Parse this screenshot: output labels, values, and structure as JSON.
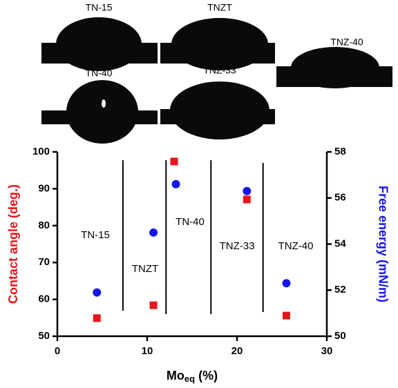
{
  "images": [
    {
      "label": "TN-15"
    },
    {
      "label": "TNZT"
    },
    {
      "label": "TNZ-40"
    },
    {
      "label": "TN-40"
    },
    {
      "label": "TNZ-33"
    }
  ],
  "chart_data": {
    "type": "scatter",
    "x_label": {
      "text": "Mo",
      "subscript": "eq",
      "suffix": "(%)"
    },
    "y_label": "Contact angle (deg.)",
    "y2_label": "Free energy (mN/m)",
    "xlim": [
      0,
      30
    ],
    "xticks": [
      0,
      10,
      20,
      30
    ],
    "ylim": [
      50,
      100
    ],
    "yticks": [
      50,
      60,
      70,
      80,
      90,
      100
    ],
    "y2lim": [
      50,
      58
    ],
    "y2ticks": [
      50,
      52,
      54,
      56,
      58
    ],
    "series": [
      {
        "color": "#e8141b",
        "marker": "square",
        "x": [
          4.4,
          10.7,
          13.0,
          21.1,
          25.5
        ],
        "values": [
          54.9,
          58.4,
          97.4,
          87.1,
          55.6
        ]
      },
      {
        "color": "#1515ee",
        "marker": "circle",
        "axis": "y2",
        "x": [
          4.4,
          10.7,
          13.2,
          21.1,
          25.5
        ],
        "values": [
          51.9,
          54.5,
          56.6,
          56.3,
          52.3
        ]
      }
    ],
    "separators": [
      7.3,
      12.1,
      17.1,
      22.9
    ],
    "annotations": [
      "TN-15",
      "TNZT",
      "TN-40",
      "TNZ-33",
      "TNZ-40"
    ]
  }
}
